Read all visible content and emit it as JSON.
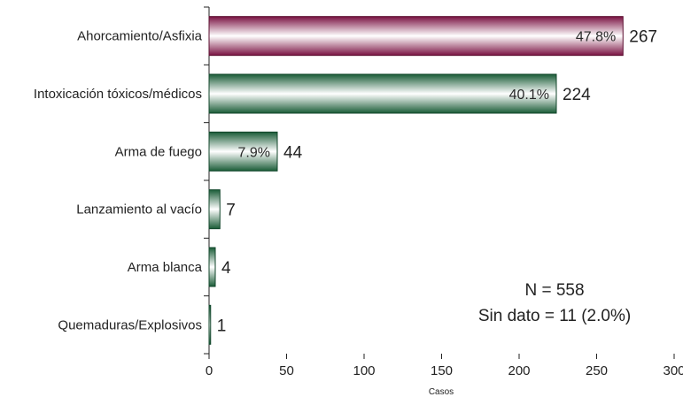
{
  "chart_data": {
    "type": "bar",
    "orientation": "horizontal",
    "categories": [
      "Ahorcamiento/Asfixia",
      "Intoxicación tóxicos/médicos",
      "Arma de fuego",
      "Lanzamiento al vacío",
      "Arma blanca",
      "Quemaduras/Explosivos"
    ],
    "values": [
      267,
      224,
      44,
      7,
      4,
      1
    ],
    "percent_labels": [
      "47.8%",
      "40.1%",
      "7.9%",
      "",
      "",
      ""
    ],
    "bar_colors": [
      "#8b1a4e",
      "#1e6b40",
      "#1e6b40",
      "#1e6b40",
      "#1e6b40",
      "#1e6b40"
    ],
    "xlabel": "Casos",
    "ylabel": "",
    "xlim": [
      0,
      300
    ],
    "xticks": [
      "0",
      "50",
      "100",
      "150",
      "200",
      "250",
      "300"
    ],
    "grid": false,
    "annotations": [
      "N = 558",
      "Sin dato = 11 (2.0%)"
    ]
  }
}
